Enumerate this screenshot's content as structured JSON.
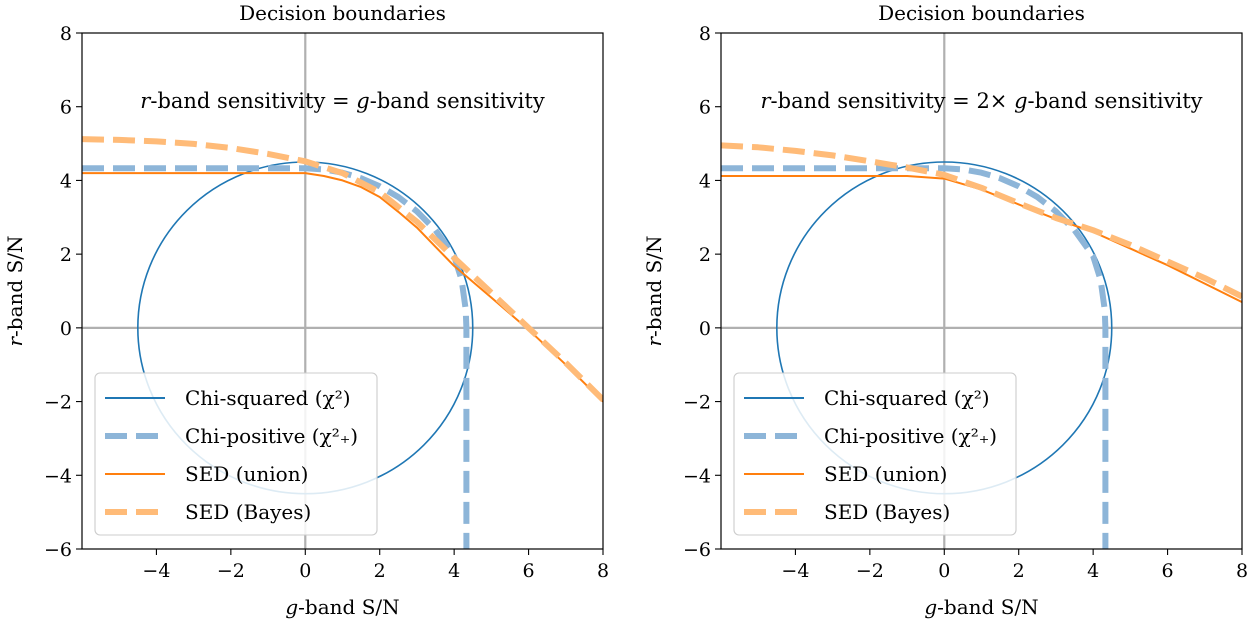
{
  "chart_data": [
    {
      "type": "line",
      "title": "Decision boundaries",
      "annotation": {
        "pre": "r",
        "mid": "-band sensitivity = ",
        "pre2": "g",
        "post": "-band sensitivity"
      },
      "xlabel": {
        "ital": "g",
        "rest": "-band S/N"
      },
      "ylabel": {
        "ital": "r",
        "rest": "-band S/N"
      },
      "xlim": [
        -6,
        8
      ],
      "ylim": [
        -6,
        8
      ],
      "xticks": [
        -4,
        -2,
        0,
        2,
        4,
        6,
        8
      ],
      "yticks": [
        -6,
        -4,
        -2,
        0,
        2,
        4,
        6,
        8
      ],
      "xtick_labels": [
        "−4",
        "−2",
        "0",
        "2",
        "4",
        "6",
        "8"
      ],
      "ytick_labels": [
        "−6",
        "−4",
        "−2",
        "0",
        "2",
        "4",
        "6",
        "8"
      ],
      "legend": {
        "position": "lower-left",
        "entries": [
          "Chi-squared (χ²)",
          "Chi-positive (χ²₊)",
          "SED (union)",
          "SED (Bayes)"
        ]
      },
      "series": [
        {
          "name": "Chi-squared (χ²)",
          "color": "#1f77b4",
          "style": "solid",
          "shape": "circle",
          "radius": 4.5
        },
        {
          "name": "Chi-positive (χ²₊)",
          "color": "#8db5d8",
          "style": "dashed",
          "points": [
            [
              -6,
              4.33
            ],
            [
              0,
              4.33
            ],
            [
              0.5,
              4.3
            ],
            [
              1,
              4.21
            ],
            [
              1.5,
              4.06
            ],
            [
              2,
              3.84
            ],
            [
              2.5,
              3.55
            ],
            [
              3,
              3.16
            ],
            [
              3.5,
              2.65
            ],
            [
              4,
              1.95
            ],
            [
              4.2,
              1.3
            ],
            [
              4.31,
              0.5
            ],
            [
              4.33,
              0
            ],
            [
              4.33,
              -6
            ]
          ]
        },
        {
          "name": "SED (union)",
          "color": "#ff7f0e",
          "style": "solid",
          "points": [
            [
              -6,
              4.2
            ],
            [
              0,
              4.2
            ],
            [
              0.5,
              4.12
            ],
            [
              1,
              4.0
            ],
            [
              1.5,
              3.82
            ],
            [
              2,
              3.55
            ],
            [
              2.5,
              3.15
            ],
            [
              3,
              2.72
            ],
            [
              3.5,
              2.2
            ],
            [
              4,
              1.68
            ],
            [
              5,
              0.82
            ],
            [
              6,
              -0.05
            ],
            [
              7,
              -1.0
            ],
            [
              8,
              -2.0
            ]
          ]
        },
        {
          "name": "SED (Bayes)",
          "color": "#ffbb78",
          "style": "dashed",
          "points": [
            [
              -6,
              5.12
            ],
            [
              -5,
              5.1
            ],
            [
              -4,
              5.06
            ],
            [
              -3,
              4.99
            ],
            [
              -2,
              4.88
            ],
            [
              -1,
              4.72
            ],
            [
              0,
              4.52
            ],
            [
              1,
              4.2
            ],
            [
              2,
              3.68
            ],
            [
              3,
              2.88
            ],
            [
              4,
              1.9
            ],
            [
              5,
              0.95
            ],
            [
              6,
              0.0
            ],
            [
              7,
              -0.95
            ],
            [
              8,
              -1.95
            ]
          ]
        }
      ]
    },
    {
      "type": "line",
      "title": "Decision boundaries",
      "annotation": {
        "pre": "r",
        "mid": "-band sensitivity = 2× ",
        "pre2": "g",
        "post": "-band sensitivity"
      },
      "xlabel": {
        "ital": "g",
        "rest": "-band S/N"
      },
      "ylabel": {
        "ital": "r",
        "rest": "-band S/N"
      },
      "xlim": [
        -6,
        8
      ],
      "ylim": [
        -6,
        8
      ],
      "xticks": [
        -4,
        -2,
        0,
        2,
        4,
        6,
        8
      ],
      "yticks": [
        -6,
        -4,
        -2,
        0,
        2,
        4,
        6,
        8
      ],
      "xtick_labels": [
        "−4",
        "−2",
        "0",
        "2",
        "4",
        "6",
        "8"
      ],
      "ytick_labels": [
        "−6",
        "−4",
        "−2",
        "0",
        "2",
        "4",
        "6",
        "8"
      ],
      "legend": {
        "position": "lower-left",
        "entries": [
          "Chi-squared (χ²)",
          "Chi-positive (χ²₊)",
          "SED (union)",
          "SED (Bayes)"
        ]
      },
      "series": [
        {
          "name": "Chi-squared (χ²)",
          "color": "#1f77b4",
          "style": "solid",
          "shape": "circle",
          "radius": 4.5
        },
        {
          "name": "Chi-positive (χ²₊)",
          "color": "#8db5d8",
          "style": "dashed",
          "points": [
            [
              -6,
              4.33
            ],
            [
              0,
              4.33
            ],
            [
              0.5,
              4.3
            ],
            [
              1,
              4.21
            ],
            [
              1.5,
              4.06
            ],
            [
              2,
              3.84
            ],
            [
              2.5,
              3.55
            ],
            [
              3,
              3.16
            ],
            [
              3.5,
              2.65
            ],
            [
              4,
              1.95
            ],
            [
              4.2,
              1.3
            ],
            [
              4.31,
              0.5
            ],
            [
              4.33,
              0
            ],
            [
              4.33,
              -6
            ]
          ]
        },
        {
          "name": "SED (union)",
          "color": "#ff7f0e",
          "style": "solid",
          "points": [
            [
              -6,
              4.12
            ],
            [
              -1,
              4.12
            ],
            [
              0,
              4.05
            ],
            [
              1,
              3.75
            ],
            [
              2,
              3.35
            ],
            [
              3,
              2.95
            ],
            [
              4,
              2.6
            ],
            [
              5,
              2.15
            ],
            [
              6,
              1.7
            ],
            [
              7,
              1.2
            ],
            [
              8,
              0.7
            ]
          ]
        },
        {
          "name": "SED (Bayes)",
          "color": "#ffbb78",
          "style": "dashed",
          "points": [
            [
              -6,
              4.95
            ],
            [
              -5,
              4.9
            ],
            [
              -4,
              4.8
            ],
            [
              -3,
              4.68
            ],
            [
              -2,
              4.52
            ],
            [
              -1,
              4.35
            ],
            [
              0,
              4.15
            ],
            [
              1,
              3.8
            ],
            [
              2,
              3.38
            ],
            [
              3,
              2.98
            ],
            [
              4,
              2.65
            ],
            [
              5,
              2.25
            ],
            [
              6,
              1.8
            ],
            [
              7,
              1.35
            ],
            [
              8,
              0.85
            ]
          ]
        }
      ]
    }
  ]
}
